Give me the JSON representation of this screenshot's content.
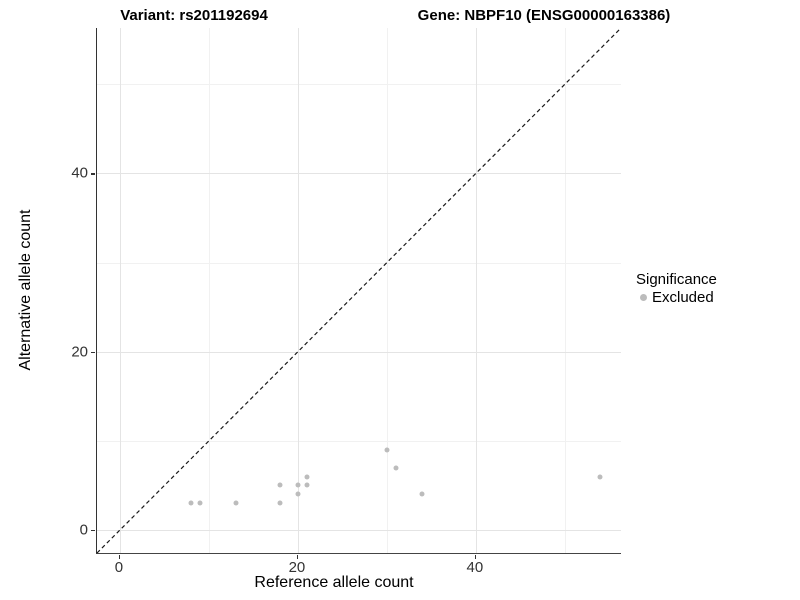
{
  "title": {
    "variant": "Variant: rs201192694",
    "gene": "Gene: NBPF10 (ENSG00000163386)"
  },
  "axes": {
    "x_label": "Reference allele count",
    "y_label": "Alternative allele count"
  },
  "legend": {
    "title": "Significance",
    "items": [
      {
        "label": "Excluded",
        "color": "#bcbcbc"
      }
    ]
  },
  "colors": {
    "point": "#bcbcbc",
    "identity_line": "#1a1a1a",
    "grid_major": "#e4e4e4",
    "grid_minor": "#f1f1f1",
    "axis_text": "#333333"
  },
  "chart_data": {
    "type": "scatter",
    "title": "Variant: rs201192694 / Gene: NBPF10 (ENSG00000163386)",
    "xlabel": "Reference allele count",
    "ylabel": "Alternative allele count",
    "xlim": [
      -2.58,
      56.31
    ],
    "ylim": [
      -2.58,
      56.31
    ],
    "x_ticks": [
      0,
      20,
      40
    ],
    "y_ticks": [
      0,
      20,
      40
    ],
    "x_minor_ticks": [
      10,
      30,
      50
    ],
    "y_minor_ticks": [
      10,
      30,
      50
    ],
    "grid": true,
    "legend_position": "right",
    "series": [
      {
        "name": "Excluded",
        "color": "#bcbcbc",
        "points": [
          [
            8,
            3
          ],
          [
            9,
            3
          ],
          [
            13,
            3
          ],
          [
            18,
            3
          ],
          [
            18,
            5
          ],
          [
            20,
            4
          ],
          [
            20,
            5
          ],
          [
            21,
            5
          ],
          [
            21,
            6
          ],
          [
            30,
            9
          ],
          [
            31,
            7
          ],
          [
            34,
            4
          ],
          [
            54,
            6
          ]
        ]
      }
    ],
    "reference_line": {
      "type": "identity",
      "equation": "y = x",
      "style": "dashed",
      "color": "#1a1a1a"
    }
  }
}
